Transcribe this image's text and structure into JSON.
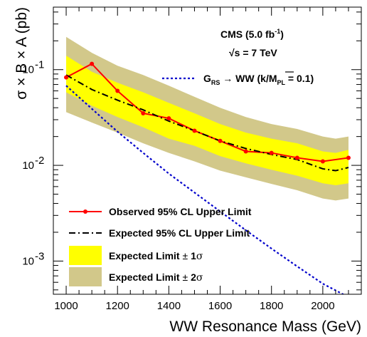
{
  "chart_data": {
    "type": "line",
    "xlabel": "WW Resonance Mass (GeV)",
    "ylabel": "σ × B × A (pb)",
    "xlim": [
      950,
      2150
    ],
    "ylim": [
      0.00045,
      0.45
    ],
    "yscale": "log",
    "grid": false,
    "legend_position": "bottom-left",
    "x_ticks": [
      1000,
      1200,
      1400,
      1600,
      1800,
      2000
    ],
    "y_ticks": [
      {
        "value": 0.001,
        "base": "10",
        "exp": "-3"
      },
      {
        "value": 0.01,
        "base": "10",
        "exp": "-2"
      },
      {
        "value": 0.1,
        "base": "10",
        "exp": "-1"
      }
    ],
    "annotations": {
      "experiment": "CMS (5.0 fb",
      "experiment_sup": "-1",
      "experiment_close": ")",
      "energy": "√s = 7 TeV",
      "model_prefix": "G",
      "model_sub_rs": "RS",
      "model_mid": " → WW (k/M",
      "model_sub_pl": "PL",
      "model_suffix": " = 0.1)"
    },
    "series": [
      {
        "name": "Observed 95% CL Upper Limit",
        "color": "#ff0000",
        "style": "solid-markers",
        "x": [
          1000,
          1100,
          1200,
          1300,
          1400,
          1500,
          1600,
          1700,
          1800,
          1900,
          2000,
          2100
        ],
        "y": [
          0.083,
          0.115,
          0.06,
          0.035,
          0.031,
          0.023,
          0.018,
          0.014,
          0.0135,
          0.012,
          0.011,
          0.012
        ]
      },
      {
        "name": "Expected 95% CL Upper Limit",
        "color": "#000000",
        "style": "dash-dot",
        "x": [
          1000,
          1100,
          1200,
          1300,
          1400,
          1500,
          1600,
          1700,
          1800,
          1900,
          2000,
          2050,
          2100
        ],
        "y": [
          0.088,
          0.062,
          0.048,
          0.038,
          0.029,
          0.023,
          0.018,
          0.015,
          0.013,
          0.0115,
          0.0092,
          0.0088,
          0.0095
        ]
      },
      {
        "name": "Expected Limit ± 1σ",
        "color": "#ffff00",
        "style": "band",
        "x": [
          1000,
          1100,
          1200,
          1300,
          1400,
          1500,
          1600,
          1700,
          1800,
          1900,
          2000,
          2050,
          2100
        ],
        "lower": [
          0.058,
          0.042,
          0.032,
          0.025,
          0.019,
          0.016,
          0.0125,
          0.0105,
          0.009,
          0.0078,
          0.0065,
          0.0062,
          0.0065
        ],
        "upper": [
          0.14,
          0.095,
          0.073,
          0.058,
          0.045,
          0.035,
          0.027,
          0.022,
          0.019,
          0.017,
          0.014,
          0.0135,
          0.0145
        ]
      },
      {
        "name": "Expected Limit ± 2σ",
        "color": "#d2c88a",
        "style": "band",
        "x": [
          1000,
          1100,
          1200,
          1300,
          1400,
          1500,
          1600,
          1700,
          1800,
          1900,
          2000,
          2050,
          2100
        ],
        "lower": [
          0.036,
          0.028,
          0.022,
          0.017,
          0.0135,
          0.011,
          0.0088,
          0.0075,
          0.0064,
          0.0055,
          0.0045,
          0.0043,
          0.0045
        ],
        "upper": [
          0.22,
          0.15,
          0.11,
          0.088,
          0.068,
          0.052,
          0.04,
          0.032,
          0.027,
          0.024,
          0.02,
          0.019,
          0.02
        ]
      },
      {
        "name": "G_RS → WW (k/M_PL = 0.1)",
        "color": "#0000cc",
        "style": "dotted",
        "x": [
          1000,
          1100,
          1200,
          1300,
          1400,
          1500,
          1600,
          1700,
          1800,
          1900,
          2000,
          2100
        ],
        "y": [
          0.068,
          0.039,
          0.0225,
          0.0135,
          0.0082,
          0.0052,
          0.0033,
          0.0021,
          0.00135,
          0.00088,
          0.00058,
          0.00042
        ]
      }
    ],
    "legend": {
      "observed": "Observed 95% CL Upper Limit",
      "expected": "Expected 95% CL Upper Limit",
      "one_sigma_prefix": "Expected Limit",
      "one_sigma_pm": " ± ",
      "one_sigma_n": "1",
      "one_sigma_sym": "σ",
      "two_sigma_prefix": "Expected Limit",
      "two_sigma_pm": " ± ",
      "two_sigma_n": "2",
      "two_sigma_sym": "σ"
    }
  }
}
